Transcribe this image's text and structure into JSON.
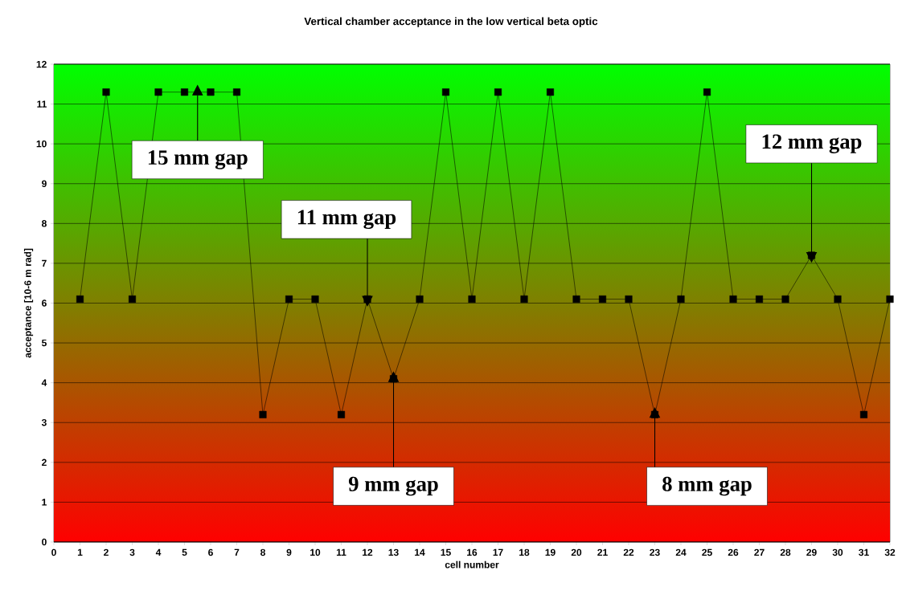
{
  "chart_data": {
    "type": "line",
    "title": "Vertical chamber acceptance in the low vertical beta optic",
    "xlabel": "cell number",
    "ylabel": "acceptance [10-6 m rad]",
    "x": [
      1,
      2,
      3,
      4,
      5,
      6,
      7,
      8,
      9,
      10,
      11,
      12,
      13,
      14,
      15,
      16,
      17,
      18,
      19,
      20,
      21,
      22,
      23,
      24,
      25,
      26,
      27,
      28,
      29,
      30,
      31,
      32
    ],
    "series": [
      {
        "color": "#000000",
        "values": [
          6.1,
          11.3,
          6.1,
          11.3,
          11.3,
          11.3,
          11.3,
          3.2,
          6.1,
          6.1,
          3.2,
          6.1,
          4.1,
          6.1,
          11.3,
          6.1,
          11.3,
          6.1,
          11.3,
          6.1,
          6.1,
          6.1,
          3.2,
          6.1,
          11.3,
          6.1,
          6.1,
          6.1,
          7.2,
          6.1,
          3.2,
          6.1
        ]
      }
    ],
    "xlim": [
      0,
      32
    ],
    "xticks": [
      0,
      1,
      2,
      3,
      4,
      5,
      6,
      7,
      8,
      9,
      10,
      11,
      12,
      13,
      14,
      15,
      16,
      17,
      18,
      19,
      20,
      21,
      22,
      23,
      24,
      25,
      26,
      27,
      28,
      29,
      30,
      31,
      32
    ],
    "ylim": [
      0,
      12
    ],
    "yticks": [
      0,
      1,
      2,
      3,
      4,
      5,
      6,
      7,
      8,
      9,
      10,
      11,
      12
    ],
    "grid": "y",
    "marker": "square",
    "line_style": "solid",
    "annotations": [
      {
        "text": "15 mm gap",
        "x": 5.5,
        "y": 11.3
      },
      {
        "text": "11 mm gap",
        "x": 12,
        "y": 6.1
      },
      {
        "text": "9 mm gap",
        "x": 13,
        "y": 4.1
      },
      {
        "text": "8 mm gap",
        "x": 23,
        "y": 3.2
      },
      {
        "text": "12 mm gap",
        "x": 29,
        "y": 7.2
      }
    ]
  }
}
